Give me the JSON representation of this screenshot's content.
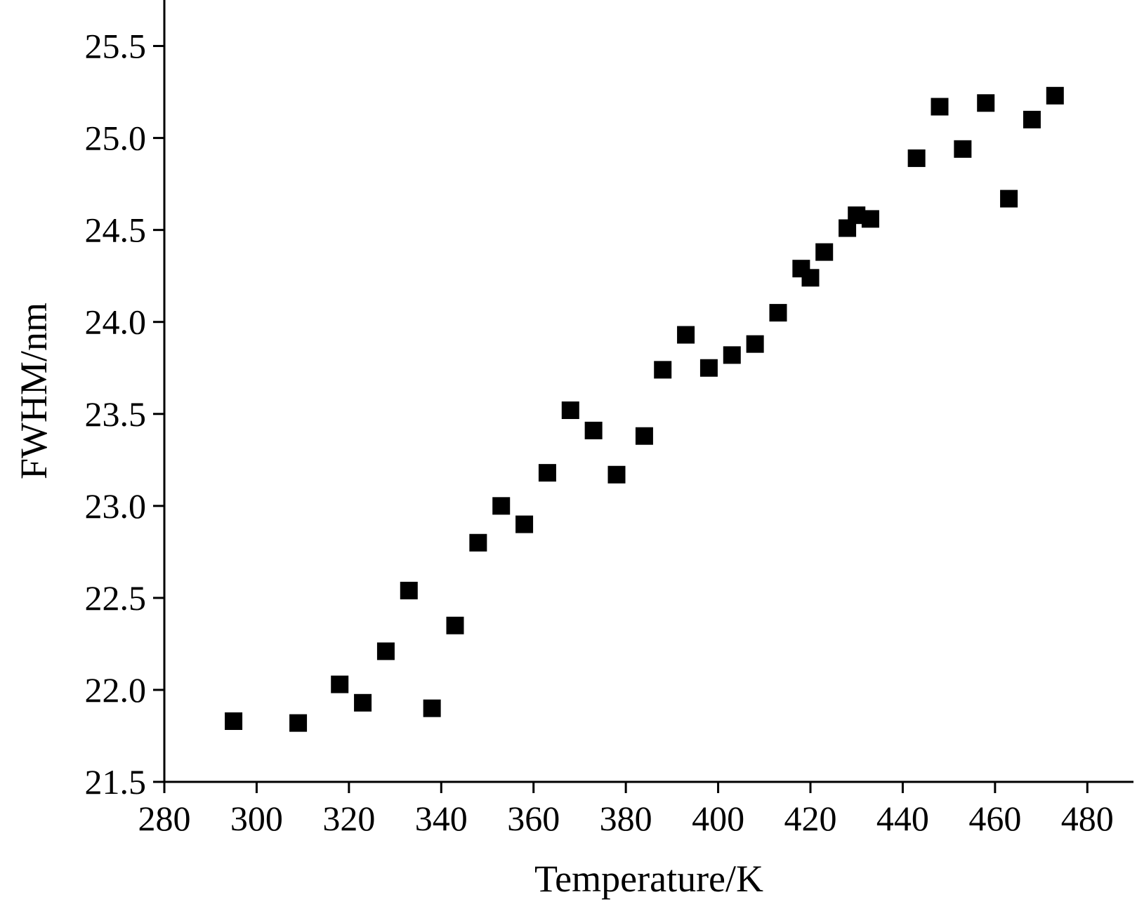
{
  "chart_data": {
    "type": "scatter",
    "title": "",
    "xlabel": "Temperature/K",
    "ylabel": "FWHM/nm",
    "xlim": [
      280,
      490
    ],
    "ylim": [
      21.5,
      25.75
    ],
    "x_ticks": [
      280,
      300,
      320,
      340,
      360,
      380,
      400,
      420,
      440,
      460,
      480
    ],
    "x_tick_labels": [
      "280",
      "300",
      "320",
      "340",
      "360",
      "380",
      "400",
      "420",
      "440",
      "460",
      "480"
    ],
    "y_ticks": [
      21.5,
      22.0,
      22.5,
      23.0,
      23.5,
      24.0,
      24.5,
      25.0,
      25.5
    ],
    "y_tick_labels": [
      "21.5",
      "22.0",
      "22.5",
      "23.0",
      "23.5",
      "24.0",
      "24.5",
      "25.0",
      "25.5"
    ],
    "grid": false,
    "marker": "square",
    "marker_color": "#000000",
    "series": [
      {
        "points": [
          {
            "x": 295,
            "y": 21.83
          },
          {
            "x": 309,
            "y": 21.82
          },
          {
            "x": 318,
            "y": 22.03
          },
          {
            "x": 323,
            "y": 21.93
          },
          {
            "x": 328,
            "y": 22.21
          },
          {
            "x": 333,
            "y": 22.54
          },
          {
            "x": 338,
            "y": 21.9
          },
          {
            "x": 343,
            "y": 22.35
          },
          {
            "x": 348,
            "y": 22.8
          },
          {
            "x": 353,
            "y": 23.0
          },
          {
            "x": 358,
            "y": 22.9
          },
          {
            "x": 363,
            "y": 23.18
          },
          {
            "x": 368,
            "y": 23.52
          },
          {
            "x": 373,
            "y": 23.41
          },
          {
            "x": 378,
            "y": 23.17
          },
          {
            "x": 384,
            "y": 23.38
          },
          {
            "x": 388,
            "y": 23.74
          },
          {
            "x": 393,
            "y": 23.93
          },
          {
            "x": 398,
            "y": 23.75
          },
          {
            "x": 403,
            "y": 23.82
          },
          {
            "x": 408,
            "y": 23.88
          },
          {
            "x": 413,
            "y": 24.05
          },
          {
            "x": 418,
            "y": 24.29
          },
          {
            "x": 420,
            "y": 24.24
          },
          {
            "x": 423,
            "y": 24.38
          },
          {
            "x": 428,
            "y": 24.51
          },
          {
            "x": 430,
            "y": 24.58
          },
          {
            "x": 433,
            "y": 24.56
          },
          {
            "x": 443,
            "y": 24.89
          },
          {
            "x": 448,
            "y": 25.17
          },
          {
            "x": 453,
            "y": 24.94
          },
          {
            "x": 458,
            "y": 25.19
          },
          {
            "x": 463,
            "y": 24.67
          },
          {
            "x": 468,
            "y": 25.1
          },
          {
            "x": 473,
            "y": 25.23
          }
        ]
      }
    ]
  }
}
